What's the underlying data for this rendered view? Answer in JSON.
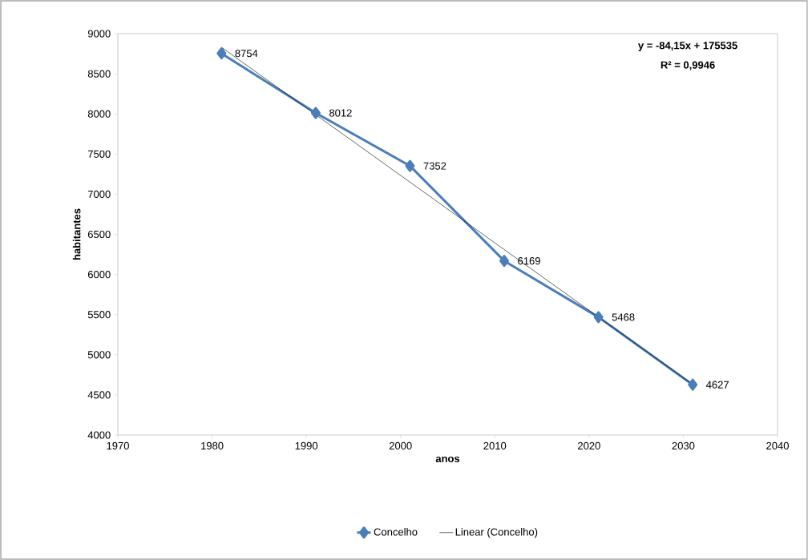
{
  "chart_data": {
    "type": "line",
    "xlabel": "anos",
    "ylabel": "habitantes",
    "xlim": [
      1970,
      2040
    ],
    "xticks": [
      1970,
      1980,
      1990,
      2000,
      2010,
      2020,
      2030,
      2040
    ],
    "ylim": [
      4000,
      9000
    ],
    "yticks": [
      4000,
      4500,
      5000,
      5500,
      6000,
      6500,
      7000,
      7500,
      8000,
      8500,
      9000
    ],
    "series": [
      {
        "name": "Concelho",
        "color": "#4a7ebb",
        "marker": "diamond",
        "x": [
          1981,
          1991,
          2001,
          2011,
          2021,
          2031
        ],
        "values": [
          8754,
          8012,
          7352,
          6169,
          5468,
          4627
        ],
        "value_labels": [
          "8754",
          "8012",
          "7352",
          "6169",
          "5468",
          "4627"
        ]
      },
      {
        "name": "Linear (Concelho)",
        "type": "line",
        "color": "#000000",
        "marker": "none",
        "x": [
          1981,
          2031
        ],
        "values": [
          8830,
          4630
        ]
      }
    ],
    "annotations": [
      "y = -84,15x + 175535",
      "R² = 0,9946"
    ],
    "legend": "bottom",
    "grid": false
  }
}
